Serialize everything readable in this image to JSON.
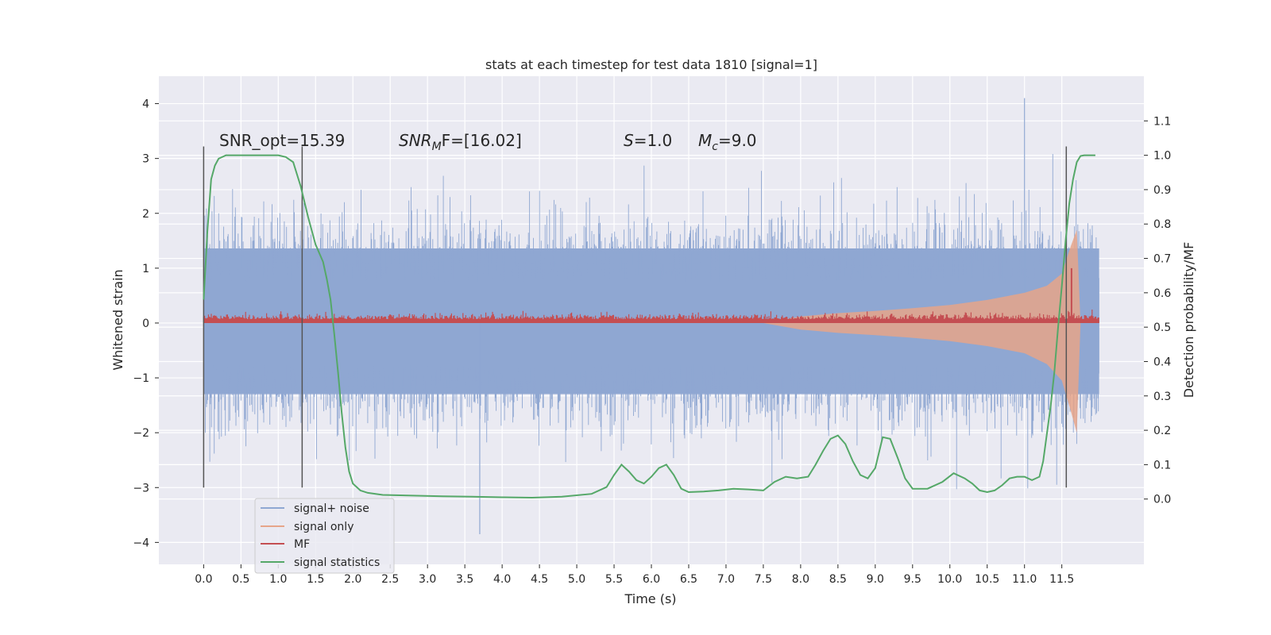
{
  "chart_data": {
    "type": "line",
    "title": "stats at each timestep for test data 1810 [signal=1]",
    "xlabel": "Time (s)",
    "ylabel": "Whitened strain",
    "y2label": "Detection probability/MF",
    "xlim": [
      -0.6,
      12.6
    ],
    "ylim": [
      -4.4,
      4.5
    ],
    "y2lim": [
      -0.19,
      1.23
    ],
    "x_ticks": [
      "0.0",
      "0.5",
      "1.0",
      "1.5",
      "2.0",
      "2.5",
      "3.0",
      "3.5",
      "4.0",
      "4.5",
      "5.0",
      "5.5",
      "6.0",
      "6.5",
      "7.0",
      "7.5",
      "8.0",
      "8.5",
      "9.0",
      "9.5",
      "10.0",
      "10.5",
      "11.0",
      "11.5"
    ],
    "y_ticks": [
      "4",
      "3",
      "2",
      "1",
      "0",
      "−1",
      "−2",
      "−3",
      "−4"
    ],
    "y2_ticks": [
      "1.1",
      "1.0",
      "0.9",
      "0.8",
      "0.7",
      "0.6",
      "0.5",
      "0.4",
      "0.3",
      "0.2",
      "0.1",
      "0.0"
    ],
    "grid": true,
    "legend_position": "lower-left",
    "annotations": {
      "snr_opt": "SNR_opt=15.39",
      "snr_mf_sym": "SNR",
      "snr_mf_sub": "M",
      "snr_mf_rest": "F=[16.02]",
      "s_sym": "S",
      "s_val": "=1.0",
      "mc_sym": "M",
      "mc_sub": "c",
      "mc_val": "=9.0"
    },
    "vertical_markers": [
      {
        "x": 0.0,
        "y_range": [
          -3.0,
          3.22
        ]
      },
      {
        "x": 1.32,
        "y_range": [
          -3.0,
          3.22
        ]
      },
      {
        "x": 11.56,
        "y_range": [
          -3.0,
          3.22
        ]
      }
    ],
    "series": [
      {
        "name": "signal+ noise",
        "color": "#8fa7d2",
        "axis": "left",
        "kind": "noise",
        "x_range": [
          0.0,
          12.0
        ],
        "typical_range": [
          -1.8,
          2.0
        ],
        "peak_max": 4.1,
        "peak_min": -3.85
      },
      {
        "name": "signal only",
        "color": "#e6a58a",
        "axis": "left",
        "kind": "envelope",
        "x": [
          7.5,
          8.0,
          8.5,
          9.0,
          9.5,
          10.0,
          10.5,
          11.0,
          11.3,
          11.5,
          11.62,
          11.7,
          11.75
        ],
        "upper": [
          0.0,
          0.12,
          0.18,
          0.22,
          0.27,
          0.33,
          0.42,
          0.55,
          0.68,
          0.9,
          1.4,
          1.7,
          0.0
        ],
        "lower": [
          0.0,
          -0.12,
          -0.18,
          -0.22,
          -0.27,
          -0.33,
          -0.42,
          -0.55,
          -0.75,
          -1.05,
          -1.6,
          -2.0,
          0.0
        ]
      },
      {
        "name": "MF",
        "color": "#c44e52",
        "axis": "left",
        "kind": "band",
        "x_range": [
          0.0,
          12.0
        ],
        "typical_range": [
          0.0,
          0.18
        ],
        "spike": {
          "x": 11.63,
          "y": 1.0
        }
      },
      {
        "name": "signal statistics",
        "color": "#55a868",
        "axis": "right",
        "kind": "line",
        "x": [
          0.0,
          0.05,
          0.1,
          0.15,
          0.2,
          0.3,
          0.5,
          0.8,
          1.0,
          1.1,
          1.2,
          1.3,
          1.4,
          1.5,
          1.6,
          1.65,
          1.7,
          1.75,
          1.8,
          1.85,
          1.9,
          1.95,
          2.0,
          2.1,
          2.2,
          2.4,
          2.8,
          3.2,
          3.6,
          4.0,
          4.4,
          4.8,
          5.2,
          5.4,
          5.5,
          5.6,
          5.7,
          5.8,
          5.9,
          6.0,
          6.1,
          6.2,
          6.3,
          6.4,
          6.5,
          6.7,
          6.9,
          7.1,
          7.3,
          7.5,
          7.65,
          7.8,
          7.95,
          8.1,
          8.2,
          8.3,
          8.4,
          8.5,
          8.6,
          8.7,
          8.8,
          8.9,
          9.0,
          9.1,
          9.2,
          9.3,
          9.4,
          9.5,
          9.7,
          9.9,
          10.05,
          10.2,
          10.3,
          10.4,
          10.5,
          10.6,
          10.7,
          10.8,
          10.9,
          11.0,
          11.1,
          11.2,
          11.25,
          11.3,
          11.35,
          11.4,
          11.45,
          11.5,
          11.55,
          11.6,
          11.65,
          11.7,
          11.75,
          11.8,
          11.85,
          11.95
        ],
        "y": [
          0.58,
          0.78,
          0.93,
          0.97,
          0.99,
          1.0,
          1.0,
          1.0,
          1.0,
          0.995,
          0.98,
          0.91,
          0.82,
          0.74,
          0.69,
          0.64,
          0.58,
          0.48,
          0.37,
          0.25,
          0.15,
          0.08,
          0.045,
          0.025,
          0.018,
          0.012,
          0.01,
          0.008,
          0.007,
          0.005,
          0.004,
          0.007,
          0.015,
          0.035,
          0.07,
          0.1,
          0.08,
          0.055,
          0.045,
          0.065,
          0.09,
          0.1,
          0.07,
          0.03,
          0.02,
          0.022,
          0.025,
          0.03,
          0.028,
          0.025,
          0.05,
          0.065,
          0.06,
          0.065,
          0.1,
          0.14,
          0.175,
          0.185,
          0.16,
          0.11,
          0.07,
          0.06,
          0.09,
          0.18,
          0.175,
          0.12,
          0.06,
          0.03,
          0.03,
          0.05,
          0.075,
          0.06,
          0.045,
          0.025,
          0.02,
          0.025,
          0.04,
          0.06,
          0.065,
          0.065,
          0.055,
          0.065,
          0.11,
          0.19,
          0.27,
          0.37,
          0.5,
          0.62,
          0.75,
          0.86,
          0.93,
          0.98,
          0.998,
          1.0,
          1.0,
          1.0
        ]
      }
    ]
  }
}
